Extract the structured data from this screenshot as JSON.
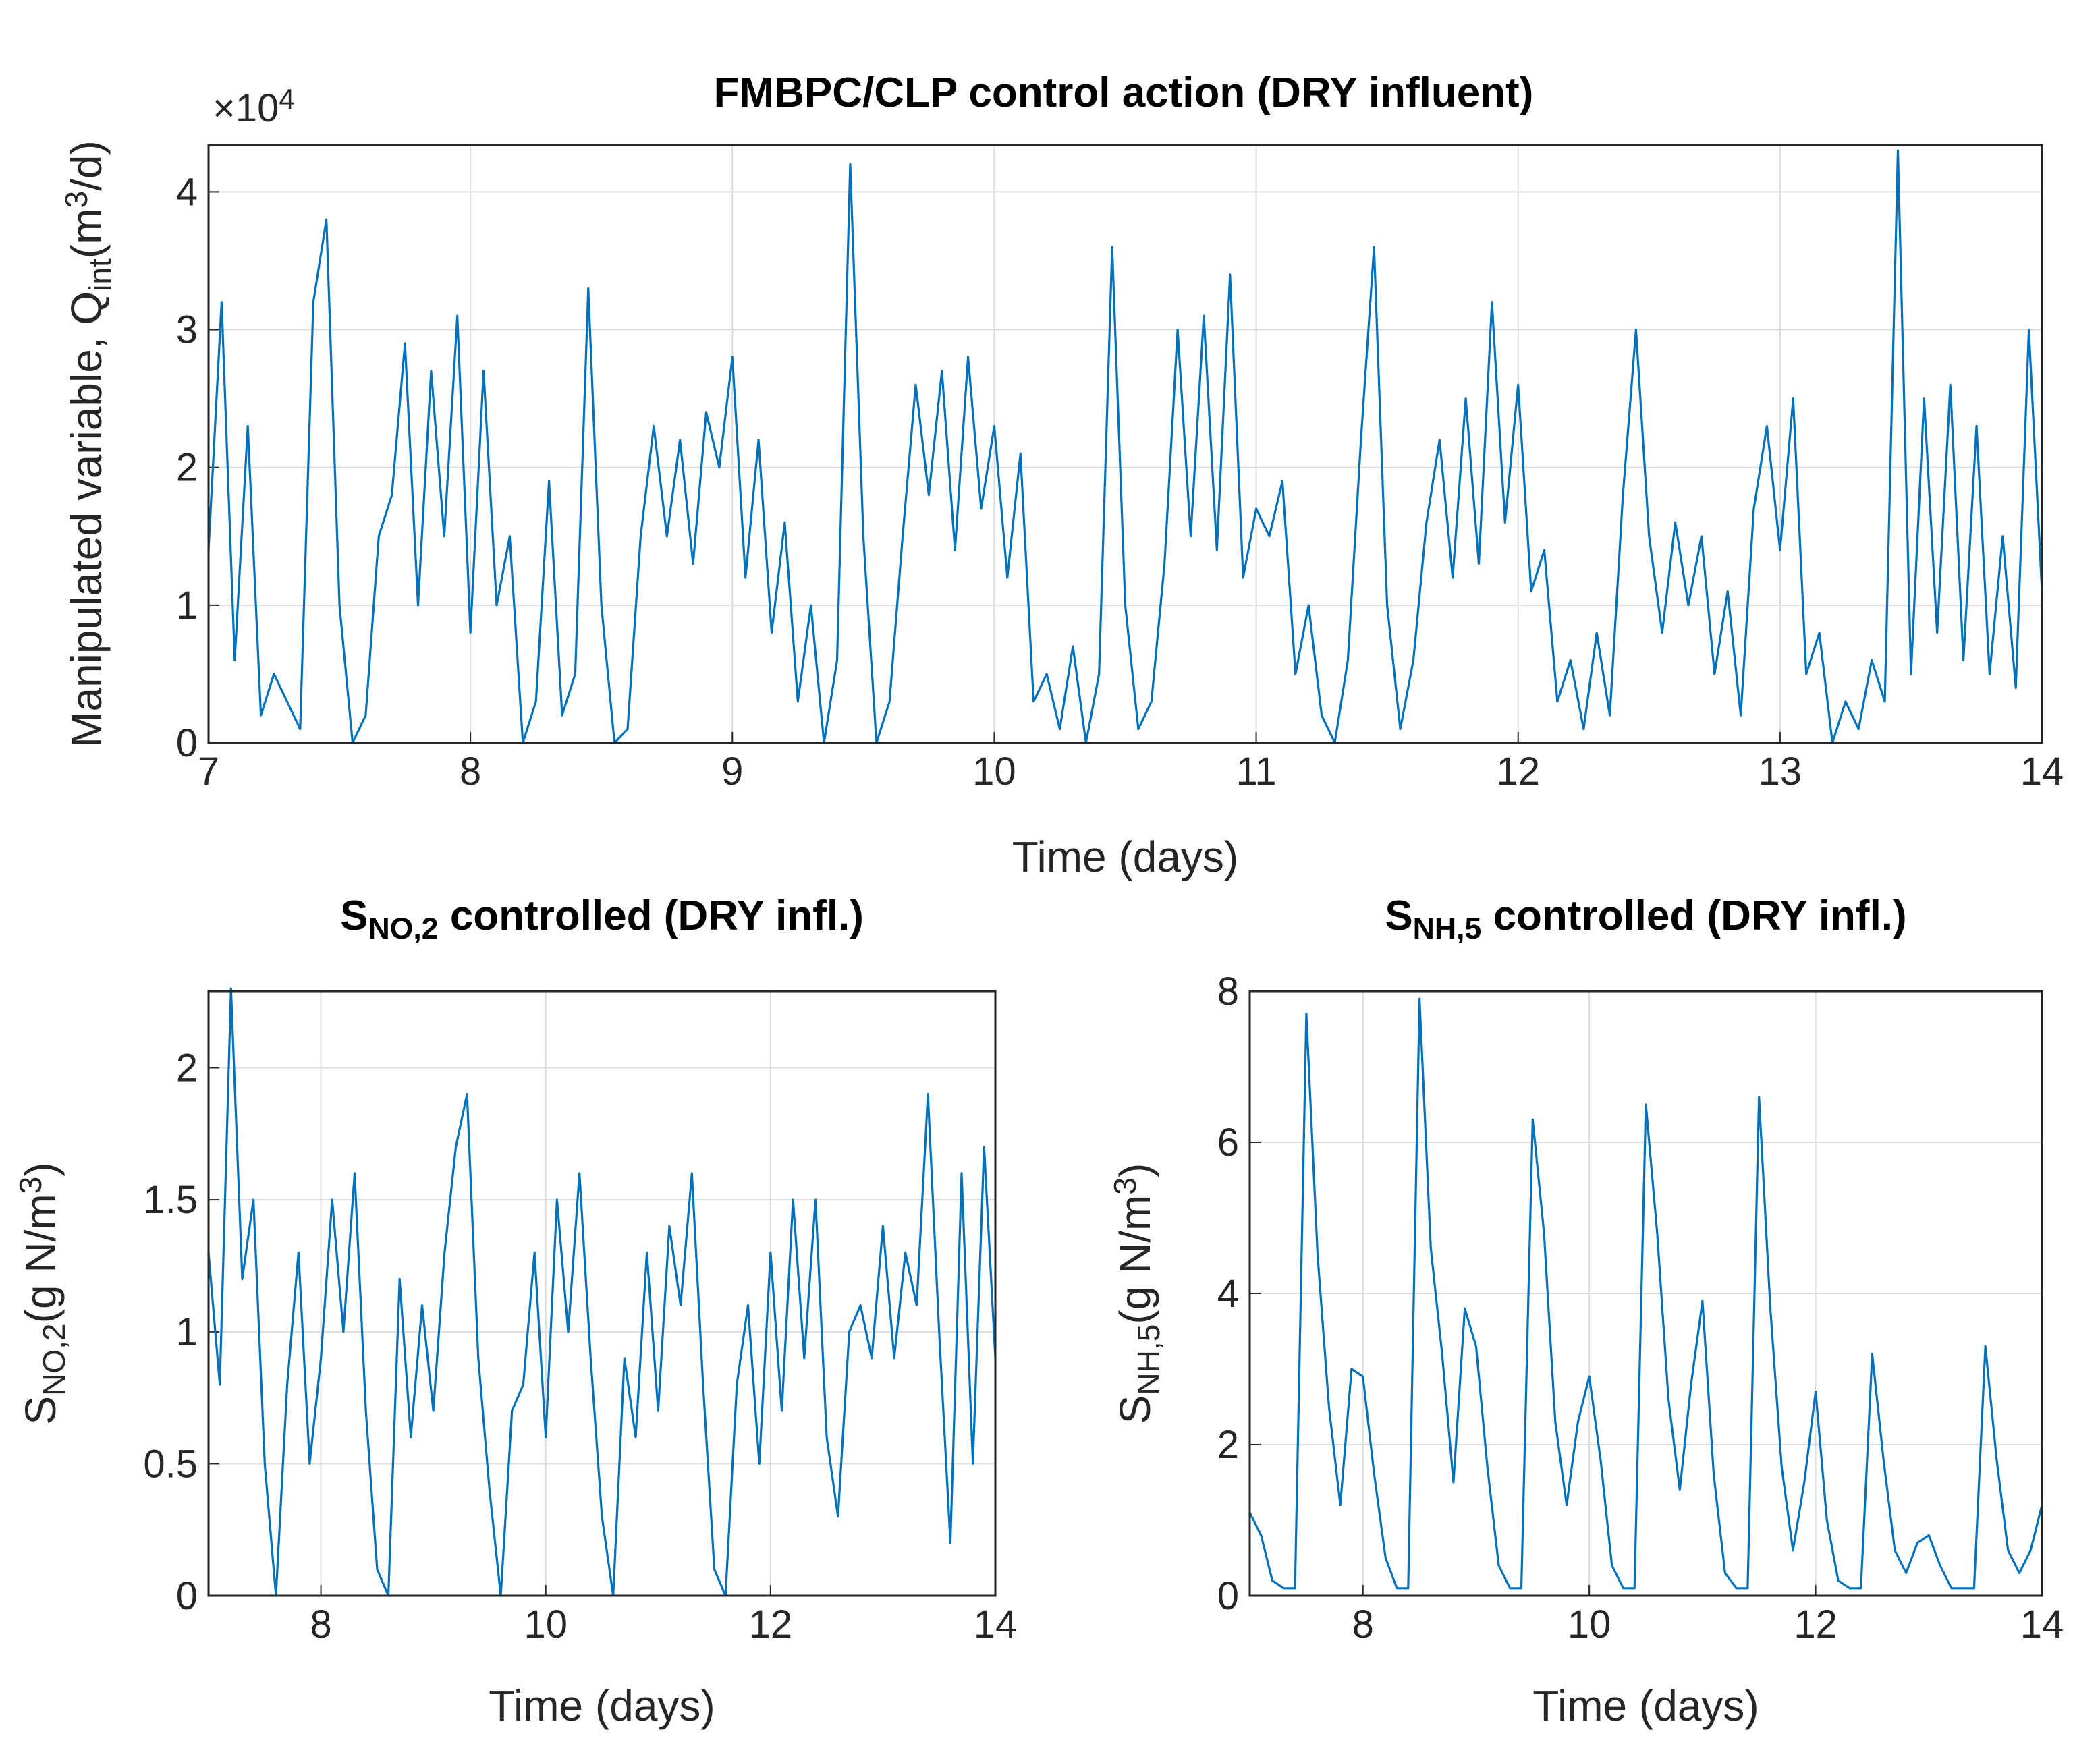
{
  "chart_data": [
    {
      "type": "line",
      "title": [
        {
          "text": "FMBPC/CLP control action (DRY influent)"
        }
      ],
      "xlabel": [
        {
          "text": "Time (days)"
        }
      ],
      "ylabel": [
        {
          "text": "Manipulated variable, Q"
        },
        {
          "text": "int",
          "shift": "sub"
        },
        {
          "text": "(m"
        },
        {
          "text": "3",
          "shift": "sup"
        },
        {
          "text": "/d)"
        }
      ],
      "yexponent": [
        {
          "text": "×10"
        },
        {
          "text": "4",
          "shift": "sup"
        }
      ],
      "xlim": [
        7,
        14
      ],
      "xticks": [
        7,
        8,
        9,
        10,
        11,
        12,
        13,
        14
      ],
      "ylim": [
        0,
        4.34
      ],
      "yticks": [
        0,
        1,
        2,
        3,
        4
      ],
      "grid": true,
      "x": [
        7,
        7.05,
        7.1,
        7.15,
        7.2,
        7.25,
        7.3,
        7.35,
        7.4,
        7.45,
        7.5,
        7.55,
        7.6,
        7.65,
        7.7,
        7.75,
        7.8,
        7.85,
        7.9,
        7.95,
        8,
        8.05,
        8.1,
        8.15,
        8.2,
        8.25,
        8.3,
        8.35,
        8.4,
        8.45,
        8.5,
        8.55,
        8.6,
        8.65,
        8.7,
        8.75,
        8.8,
        8.85,
        8.9,
        8.95,
        9,
        9.05,
        9.1,
        9.15,
        9.2,
        9.25,
        9.3,
        9.35,
        9.4,
        9.45,
        9.5,
        9.55,
        9.6,
        9.65,
        9.7,
        9.75,
        9.8,
        9.85,
        9.9,
        9.95,
        10,
        10.05,
        10.1,
        10.15,
        10.2,
        10.25,
        10.3,
        10.35,
        10.4,
        10.45,
        10.5,
        10.55,
        10.6,
        10.65,
        10.7,
        10.75,
        10.8,
        10.85,
        10.9,
        10.95,
        11,
        11.05,
        11.1,
        11.15,
        11.2,
        11.25,
        11.3,
        11.35,
        11.4,
        11.45,
        11.5,
        11.55,
        11.6,
        11.65,
        11.7,
        11.75,
        11.8,
        11.85,
        11.9,
        11.95,
        12,
        12.05,
        12.1,
        12.15,
        12.2,
        12.25,
        12.3,
        12.35,
        12.4,
        12.45,
        12.5,
        12.55,
        12.6,
        12.65,
        12.7,
        12.75,
        12.8,
        12.85,
        12.9,
        12.95,
        13,
        13.05,
        13.1,
        13.15,
        13.2,
        13.25,
        13.3,
        13.35,
        13.4,
        13.45,
        13.5,
        13.55,
        13.6,
        13.65,
        13.7,
        13.75,
        13.8,
        13.85,
        13.9,
        13.95,
        14
      ],
      "series": [
        {
          "color": "#0072bd",
          "values": [
            1.4,
            3.2,
            0.6,
            2.3,
            0.2,
            0.5,
            0.3,
            0.1,
            3.2,
            3.8,
            1.0,
            0,
            0.2,
            1.5,
            1.8,
            2.9,
            1.0,
            2.7,
            1.5,
            3.1,
            0.8,
            2.7,
            1.0,
            1.5,
            0,
            0.3,
            1.9,
            0.2,
            0.5,
            3.3,
            1.0,
            0,
            0.1,
            1.5,
            2.3,
            1.5,
            2.2,
            1.3,
            2.4,
            2.0,
            2.8,
            1.2,
            2.2,
            0.8,
            1.6,
            0.3,
            1.0,
            0,
            0.6,
            4.2,
            1.5,
            0,
            0.3,
            1.5,
            2.6,
            1.8,
            2.7,
            1.4,
            2.8,
            1.7,
            2.3,
            1.2,
            2.1,
            0.3,
            0.5,
            0.1,
            0.7,
            0,
            0.5,
            3.6,
            1.0,
            0.1,
            0.3,
            1.3,
            3.0,
            1.5,
            3.1,
            1.4,
            3.4,
            1.2,
            1.7,
            1.5,
            1.9,
            0.5,
            1.0,
            0.2,
            0,
            0.6,
            2.2,
            3.6,
            1.0,
            0.1,
            0.6,
            1.6,
            2.2,
            1.2,
            2.5,
            1.3,
            3.2,
            1.6,
            2.6,
            1.1,
            1.4,
            0.3,
            0.6,
            0.1,
            0.8,
            0.2,
            1.8,
            3.0,
            1.5,
            0.8,
            1.6,
            1.0,
            1.5,
            0.5,
            1.1,
            0.2,
            1.7,
            2.3,
            1.4,
            2.5,
            0.5,
            0.8,
            0,
            0.3,
            0.1,
            0.6,
            0.3,
            4.3,
            0.5,
            2.5,
            0.8,
            2.6,
            0.6,
            2.3,
            0.5,
            1.5,
            0.4,
            3.0,
            1.1
          ]
        }
      ]
    },
    {
      "type": "line",
      "title": [
        {
          "text": "S"
        },
        {
          "text": "NO,2",
          "shift": "sub"
        },
        {
          "text": " controlled (DRY infl.)"
        }
      ],
      "xlabel": [
        {
          "text": "Time (days)"
        }
      ],
      "ylabel": [
        {
          "text": "S"
        },
        {
          "text": "NO,2",
          "shift": "sub"
        },
        {
          "text": "(g N/m"
        },
        {
          "text": "3",
          "shift": "sup"
        },
        {
          "text": ")"
        }
      ],
      "xlim": [
        7,
        14
      ],
      "xticks": [
        8,
        10,
        12,
        14
      ],
      "ylim": [
        0,
        2.29
      ],
      "yticks": [
        0,
        0.5,
        1,
        1.5,
        2
      ],
      "grid": true,
      "x": [
        7,
        7.1,
        7.2,
        7.3,
        7.4,
        7.5,
        7.6,
        7.7,
        7.8,
        7.9,
        8,
        8.1,
        8.2,
        8.3,
        8.4,
        8.5,
        8.6,
        8.7,
        8.8,
        8.9,
        9,
        9.1,
        9.2,
        9.3,
        9.4,
        9.5,
        9.6,
        9.7,
        9.8,
        9.9,
        10,
        10.1,
        10.2,
        10.3,
        10.4,
        10.5,
        10.6,
        10.7,
        10.8,
        10.9,
        11,
        11.1,
        11.2,
        11.3,
        11.4,
        11.5,
        11.6,
        11.7,
        11.8,
        11.9,
        12,
        12.1,
        12.2,
        12.3,
        12.4,
        12.5,
        12.6,
        12.7,
        12.8,
        12.9,
        13,
        13.1,
        13.2,
        13.3,
        13.4,
        13.5,
        13.6,
        13.7,
        13.8,
        13.9,
        14
      ],
      "series": [
        {
          "color": "#0072bd",
          "values": [
            1.3,
            0.8,
            2.3,
            1.2,
            1.5,
            0.5,
            0,
            0.8,
            1.3,
            0.5,
            0.9,
            1.5,
            1.0,
            1.6,
            0.7,
            0.1,
            0,
            1.2,
            0.6,
            1.1,
            0.7,
            1.3,
            1.7,
            1.9,
            0.9,
            0.4,
            0,
            0.7,
            0.8,
            1.3,
            0.6,
            1.5,
            1.0,
            1.6,
            0.9,
            0.3,
            0,
            0.9,
            0.6,
            1.3,
            0.7,
            1.4,
            1.1,
            1.6,
            0.8,
            0.1,
            0,
            0.8,
            1.1,
            0.5,
            1.3,
            0.7,
            1.5,
            0.9,
            1.5,
            0.6,
            0.3,
            1.0,
            1.1,
            0.9,
            1.4,
            0.9,
            1.3,
            1.1,
            1.9,
            1.0,
            0.2,
            1.6,
            0.5,
            1.7,
            0.9
          ]
        }
      ]
    },
    {
      "type": "line",
      "title": [
        {
          "text": "S"
        },
        {
          "text": "NH,5",
          "shift": "sub"
        },
        {
          "text": " controlled (DRY infl.)"
        }
      ],
      "xlabel": [
        {
          "text": "Time (days)"
        }
      ],
      "ylabel": [
        {
          "text": "S"
        },
        {
          "text": "NH,5",
          "shift": "sub"
        },
        {
          "text": "(g N/m"
        },
        {
          "text": "3",
          "shift": "sup"
        },
        {
          "text": ")"
        }
      ],
      "xlim": [
        7,
        14
      ],
      "xticks": [
        8,
        10,
        12,
        14
      ],
      "ylim": [
        0,
        8
      ],
      "yticks": [
        0,
        2,
        4,
        6,
        8
      ],
      "grid": true,
      "x": [
        7,
        7.1,
        7.2,
        7.3,
        7.4,
        7.5,
        7.6,
        7.7,
        7.8,
        7.9,
        8,
        8.1,
        8.2,
        8.3,
        8.4,
        8.5,
        8.6,
        8.7,
        8.8,
        8.9,
        9,
        9.1,
        9.2,
        9.3,
        9.4,
        9.5,
        9.6,
        9.7,
        9.8,
        9.9,
        10,
        10.1,
        10.2,
        10.3,
        10.4,
        10.5,
        10.6,
        10.7,
        10.8,
        10.9,
        11,
        11.1,
        11.2,
        11.3,
        11.4,
        11.5,
        11.6,
        11.7,
        11.8,
        11.9,
        12,
        12.1,
        12.2,
        12.3,
        12.4,
        12.5,
        12.6,
        12.7,
        12.8,
        12.9,
        13,
        13.1,
        13.2,
        13.3,
        13.4,
        13.5,
        13.6,
        13.7,
        13.8,
        13.9,
        14
      ],
      "series": [
        {
          "color": "#0072bd",
          "values": [
            1.1,
            0.8,
            0.2,
            0.1,
            0.1,
            7.7,
            4.5,
            2.5,
            1.2,
            3.0,
            2.9,
            1.6,
            0.5,
            0.1,
            0.1,
            7.9,
            4.6,
            3.2,
            1.5,
            3.8,
            3.3,
            1.7,
            0.4,
            0.1,
            0.1,
            6.3,
            4.8,
            2.3,
            1.2,
            2.3,
            2.9,
            1.8,
            0.4,
            0.1,
            0.1,
            6.5,
            4.8,
            2.6,
            1.4,
            2.8,
            3.9,
            1.6,
            0.3,
            0.1,
            0.1,
            6.6,
            3.8,
            1.7,
            0.6,
            1.5,
            2.7,
            1.0,
            0.2,
            0.1,
            0.1,
            3.2,
            1.8,
            0.6,
            0.3,
            0.7,
            0.8,
            0.4,
            0.1,
            0.1,
            0.1,
            3.3,
            1.8,
            0.6,
            0.3,
            0.6,
            1.2
          ]
        }
      ]
    }
  ]
}
